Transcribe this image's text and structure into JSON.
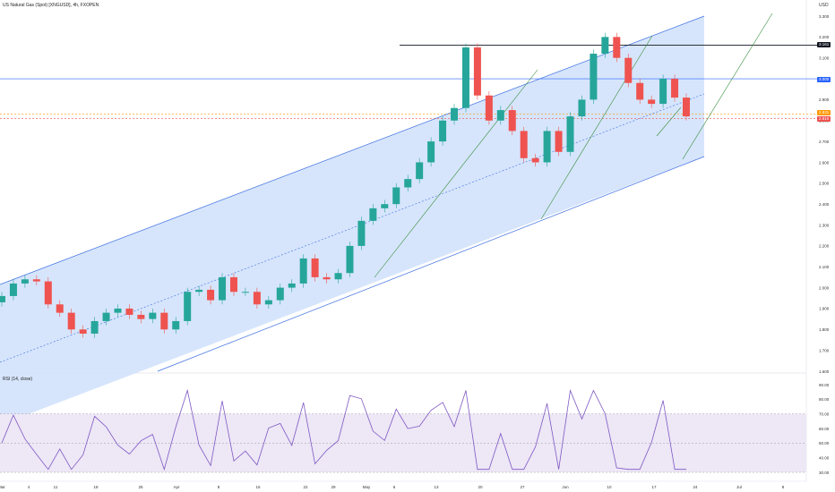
{
  "header": {
    "title": "US Natural Gas (Spot) [XNGUSD], 4h, FXOPEN",
    "currency": "USD"
  },
  "rsi_panel": {
    "title": "RSI (14, close)",
    "ticks": [
      "90.00",
      "80.00",
      "70.00",
      "60.00",
      "50.00",
      "40.00",
      "30.00"
    ]
  },
  "price_labels": {
    "resistance": "3.161",
    "horizontal": "3.000",
    "current_orange": "2.831",
    "current_red": "2.810"
  },
  "colors": {
    "channel_fill": "#cfe0fb",
    "channel_line": "#3d6fe0",
    "up": "#26a69a",
    "down": "#ef5350",
    "rsi_line": "#7e57c2",
    "rsi_band": "#ede7f6",
    "trend_green": "#388e3c",
    "horizontal_blue": "#2962ff",
    "resistance_black": "#131722",
    "orange": "#ff9800"
  },
  "chart_data": {
    "type": "line",
    "title": "US Natural Gas (Spot) [XNGUSD], 4h, FXOPEN",
    "x_ticks": [
      "Mar",
      "4",
      "11",
      "18",
      "25",
      "Apr",
      "8",
      "15",
      "22",
      "29",
      "May",
      "6",
      "13",
      "20",
      "27",
      "Jun",
      "10",
      "17",
      "24",
      "Jul",
      "8"
    ],
    "y_ticks": [
      3.3,
      3.2,
      3.1,
      3.0,
      2.9,
      2.8,
      2.7,
      2.6,
      2.5,
      2.4,
      2.3,
      2.2,
      2.1,
      2.0,
      1.9,
      1.8,
      1.7,
      1.6
    ],
    "ylim": [
      1.6,
      3.3
    ],
    "series": [
      {
        "values": [
          1.96,
          2.02,
          2.04,
          2.03,
          1.92,
          1.88,
          1.8,
          1.78,
          1.84,
          1.88,
          1.9,
          1.87,
          1.85,
          1.88,
          1.8,
          1.84,
          1.98,
          1.99,
          1.94,
          2.05,
          1.98,
          1.98,
          1.92,
          1.94,
          2.0,
          2.02,
          2.14,
          2.05,
          2.04,
          2.07,
          2.2,
          2.32,
          2.38,
          2.4,
          2.48,
          2.52,
          2.6,
          2.7,
          2.8,
          2.86,
          3.15,
          2.92,
          2.8,
          2.85,
          2.75,
          2.62,
          2.6,
          2.75,
          2.65,
          2.82,
          2.9,
          3.12,
          3.2,
          3.1,
          2.98,
          2.9,
          2.88,
          3.0,
          2.91,
          2.82
        ]
      }
    ],
    "annotations": {
      "resistance": 3.161,
      "horizontal": 3.0,
      "current_orange": 2.831,
      "current_red": 2.81
    }
  }
}
